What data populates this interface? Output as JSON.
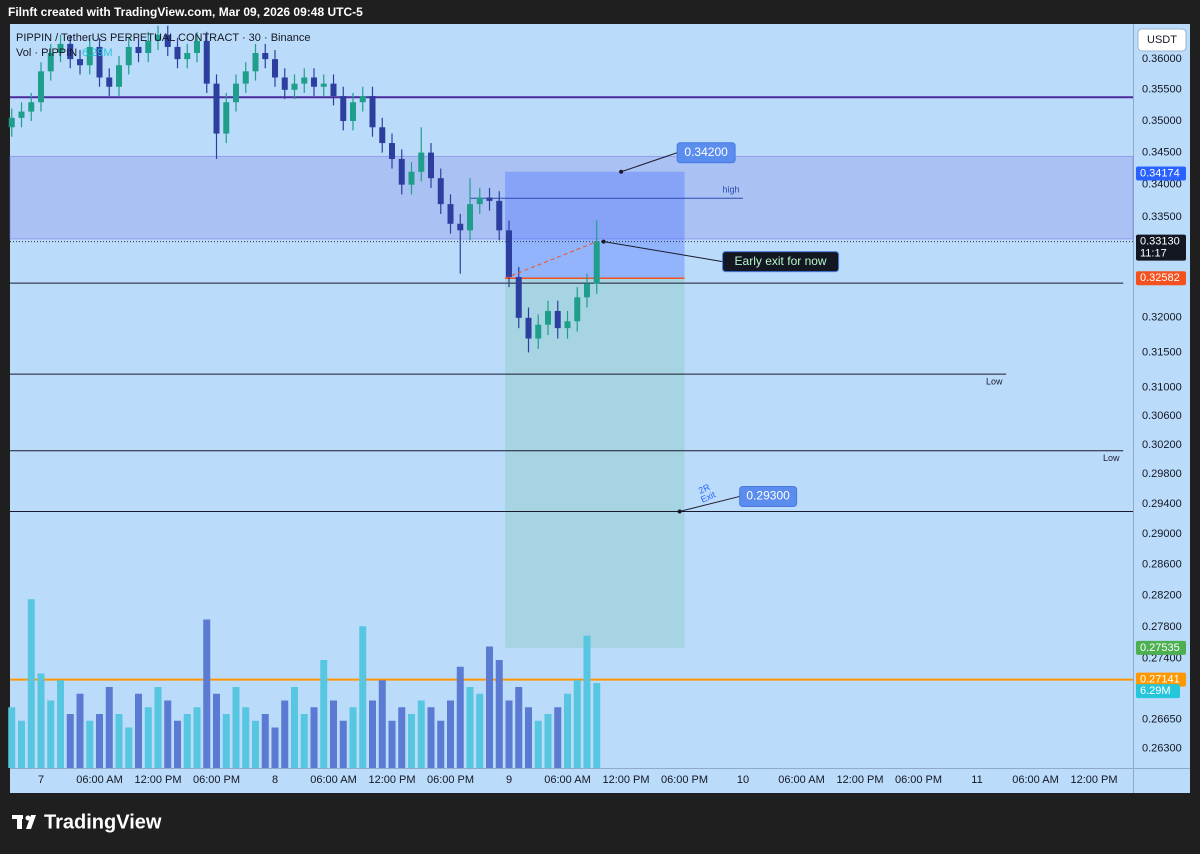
{
  "header": {
    "text": "Filnft created with TradingView.com, Mar 09, 2026 09:48 UTC-5"
  },
  "currency_button": "USDT",
  "footer": {
    "logo": "TradingView"
  },
  "chart_data": {
    "type": "candlestick",
    "title": "PIPPIN / TetherUS PERPETUAL CONTRACT · 30 · Binance",
    "volume_title": "Vol · PIPPIN",
    "volume_value_label": "6.29M",
    "log_scale": true,
    "grid": false,
    "up_color": "#1f9e8c",
    "down_color": "#2c3f9e",
    "volume_up_color": "#57c6e0",
    "volume_down_color": "#5b7ad2",
    "x": [
      -3,
      -2,
      -1,
      0,
      1,
      2,
      3,
      4,
      5,
      6,
      7,
      8,
      9,
      10,
      11,
      12,
      13,
      14,
      15,
      16,
      17,
      18,
      19,
      20,
      21,
      22,
      23,
      24,
      25,
      26,
      27,
      28,
      29,
      30,
      31,
      32,
      33,
      34,
      35,
      36,
      37,
      38,
      39,
      40,
      41,
      42,
      43,
      44,
      45,
      46,
      47,
      48,
      49,
      50,
      51,
      52,
      53,
      54,
      55,
      56,
      57
    ],
    "open": [
      0.349,
      0.3505,
      0.3515,
      0.353,
      0.358,
      0.361,
      0.3625,
      0.36,
      0.359,
      0.362,
      0.357,
      0.3555,
      0.359,
      0.362,
      0.361,
      0.363,
      0.364,
      0.362,
      0.36,
      0.361,
      0.363,
      0.356,
      0.348,
      0.353,
      0.356,
      0.358,
      0.361,
      0.36,
      0.357,
      0.355,
      0.356,
      0.357,
      0.3555,
      0.356,
      0.354,
      0.35,
      0.353,
      0.354,
      0.349,
      0.3465,
      0.344,
      0.34,
      0.342,
      0.345,
      0.341,
      0.337,
      0.334,
      0.333,
      0.337,
      0.338,
      0.3375,
      0.333,
      0.326,
      0.32,
      0.317,
      0.319,
      0.321,
      0.3185,
      0.3195,
      0.323,
      0.325
    ],
    "high": [
      0.352,
      0.353,
      0.3545,
      0.3595,
      0.3625,
      0.364,
      0.364,
      0.3615,
      0.3635,
      0.3635,
      0.3585,
      0.3605,
      0.3635,
      0.3635,
      0.3645,
      0.3655,
      0.3655,
      0.3635,
      0.3625,
      0.3645,
      0.3645,
      0.3575,
      0.3545,
      0.3575,
      0.3595,
      0.3625,
      0.3625,
      0.3615,
      0.3585,
      0.3575,
      0.3585,
      0.3585,
      0.3575,
      0.3575,
      0.3555,
      0.3545,
      0.3555,
      0.3555,
      0.3505,
      0.348,
      0.3455,
      0.3435,
      0.349,
      0.3465,
      0.3425,
      0.3385,
      0.3355,
      0.341,
      0.3395,
      0.3395,
      0.339,
      0.3345,
      0.3275,
      0.3215,
      0.3205,
      0.3225,
      0.3225,
      0.321,
      0.3245,
      0.3265,
      0.3345
    ],
    "low": [
      0.3475,
      0.349,
      0.35,
      0.3515,
      0.3565,
      0.3595,
      0.3585,
      0.3575,
      0.3575,
      0.3555,
      0.354,
      0.354,
      0.3575,
      0.3595,
      0.3595,
      0.3615,
      0.3605,
      0.3585,
      0.3585,
      0.3595,
      0.3545,
      0.344,
      0.3465,
      0.3515,
      0.3545,
      0.3565,
      0.3585,
      0.3555,
      0.3535,
      0.3535,
      0.3545,
      0.354,
      0.354,
      0.3525,
      0.3485,
      0.3485,
      0.3515,
      0.3475,
      0.345,
      0.3425,
      0.3385,
      0.3385,
      0.3405,
      0.3395,
      0.3355,
      0.3325,
      0.3265,
      0.3315,
      0.3355,
      0.336,
      0.3315,
      0.3245,
      0.3185,
      0.315,
      0.3155,
      0.3175,
      0.317,
      0.317,
      0.318,
      0.3215,
      0.3235
    ],
    "close": [
      0.3505,
      0.3515,
      0.353,
      0.358,
      0.361,
      0.3625,
      0.36,
      0.359,
      0.362,
      0.357,
      0.3555,
      0.359,
      0.362,
      0.361,
      0.363,
      0.364,
      0.362,
      0.36,
      0.361,
      0.363,
      0.356,
      0.348,
      0.353,
      0.356,
      0.358,
      0.361,
      0.36,
      0.357,
      0.355,
      0.356,
      0.357,
      0.3555,
      0.356,
      0.354,
      0.35,
      0.353,
      0.354,
      0.349,
      0.3465,
      0.344,
      0.34,
      0.342,
      0.345,
      0.341,
      0.337,
      0.334,
      0.333,
      0.337,
      0.338,
      0.3375,
      0.333,
      0.326,
      0.32,
      0.317,
      0.319,
      0.321,
      0.3185,
      0.3195,
      0.323,
      0.325,
      0.3313
    ],
    "volume": [
      4.5,
      3.5,
      12.5,
      7,
      5,
      6.5,
      4,
      5.5,
      3.5,
      4,
      6,
      4,
      3,
      5.5,
      4.5,
      6,
      5,
      3.5,
      4,
      4.5,
      11,
      5.5,
      4,
      6,
      4.5,
      3.5,
      4,
      3,
      5,
      6,
      4,
      4.5,
      8,
      5,
      3.5,
      4.5,
      10.5,
      5,
      6.5,
      3.5,
      4.5,
      4,
      5,
      4.5,
      3.5,
      5,
      7.5,
      6,
      5.5,
      9,
      8,
      5,
      6,
      4.5,
      3.5,
      4,
      4.5,
      5.5,
      6.5,
      9.8,
      6.29
    ],
    "xlim": [
      -3.18,
      112
    ],
    "xticks": [
      {
        "value": 0,
        "label": "7"
      },
      {
        "value": 6,
        "label": "06:00 AM"
      },
      {
        "value": 12,
        "label": "12:00 PM"
      },
      {
        "value": 18,
        "label": "06:00 PM"
      },
      {
        "value": 24,
        "label": "8"
      },
      {
        "value": 30,
        "label": "06:00 AM"
      },
      {
        "value": 36,
        "label": "12:00 PM"
      },
      {
        "value": 42,
        "label": "06:00 PM"
      },
      {
        "value": 48,
        "label": "9"
      },
      {
        "value": 54,
        "label": "06:00 AM"
      },
      {
        "value": 60,
        "label": "12:00 PM"
      },
      {
        "value": 66,
        "label": "06:00 PM"
      },
      {
        "value": 72,
        "label": "10"
      },
      {
        "value": 78,
        "label": "06:00 AM"
      },
      {
        "value": 84,
        "label": "12:00 PM"
      },
      {
        "value": 90,
        "label": "06:00 PM"
      },
      {
        "value": 96,
        "label": "11"
      },
      {
        "value": 102,
        "label": "06:00 AM"
      },
      {
        "value": 108,
        "label": "12:00 PM"
      }
    ],
    "ylim": [
      0.2607,
      0.3658
    ],
    "yticks": [
      {
        "value": 0.36,
        "label": "0.36000"
      },
      {
        "value": 0.355,
        "label": "0.35500"
      },
      {
        "value": 0.35,
        "label": "0.35000"
      },
      {
        "value": 0.345,
        "label": "0.34500"
      },
      {
        "value": 0.34,
        "label": "0.34000"
      },
      {
        "value": 0.335,
        "label": "0.33500"
      },
      {
        "value": 0.32,
        "label": "0.32000"
      },
      {
        "value": 0.315,
        "label": "0.31500"
      },
      {
        "value": 0.31,
        "label": "0.31000"
      },
      {
        "value": 0.306,
        "label": "0.30600"
      },
      {
        "value": 0.302,
        "label": "0.30200"
      },
      {
        "value": 0.298,
        "label": "0.29800"
      },
      {
        "value": 0.294,
        "label": "0.29400"
      },
      {
        "value": 0.29,
        "label": "0.29000"
      },
      {
        "value": 0.286,
        "label": "0.28600"
      },
      {
        "value": 0.282,
        "label": "0.28200"
      },
      {
        "value": 0.278,
        "label": "0.27800"
      },
      {
        "value": 0.274,
        "label": "0.27400"
      },
      {
        "value": 0.2665,
        "label": "0.26650"
      },
      {
        "value": 0.263,
        "label": "0.26300"
      }
    ],
    "zone": {
      "low": 0.3317,
      "high": 0.3444
    },
    "levels": [
      {
        "value": 0.3538,
        "color": "#4b2a9b"
      },
      {
        "value": 0.3379,
        "color": "#2d4bb0",
        "x": [
          44,
          72
        ],
        "label": "high"
      },
      {
        "value": 0.3251,
        "color": "#1a1a2e",
        "x": [
          -3.18,
          111
        ]
      },
      {
        "value": 0.3119,
        "color": "#1a1a2e",
        "x": [
          -3.18,
          99
        ],
        "label": "Low"
      },
      {
        "value": 0.3012,
        "color": "#1a1a2e",
        "x": [
          -3.18,
          111
        ],
        "label": "Low"
      },
      {
        "value": 0.293,
        "color": "#1a1a2e"
      },
      {
        "value": 0.27141,
        "color": "#ff9800"
      }
    ],
    "position": {
      "x": [
        47.6,
        66
      ],
      "entry": 0.32582,
      "stop": 0.342,
      "target": 0.27535,
      "note": [
        "2R",
        "Exit"
      ]
    },
    "current_price": {
      "value": 0.3313,
      "label": "0.33130",
      "countdown": "11:17"
    },
    "callouts": [
      {
        "label": "0.34200",
        "value": 0.342,
        "x": 59.5,
        "color": "#5b8def"
      },
      {
        "label": "Early exit for now",
        "value": 0.3313,
        "x": 57.7,
        "color": "#131722"
      },
      {
        "label": "0.29300",
        "value": 0.293,
        "x": 65.5,
        "color": "#5b8def"
      }
    ],
    "price_labels": [
      {
        "value": 0.34174,
        "label": "0.34174",
        "color": "#2962ff"
      },
      {
        "value": 0.32582,
        "label": "0.32582",
        "color": "#f4511e"
      },
      {
        "value": 0.27535,
        "label": "0.27535",
        "color": "#4caf50"
      },
      {
        "value": 0.27141,
        "label": "0.27141",
        "color": "#ff9800"
      }
    ]
  }
}
